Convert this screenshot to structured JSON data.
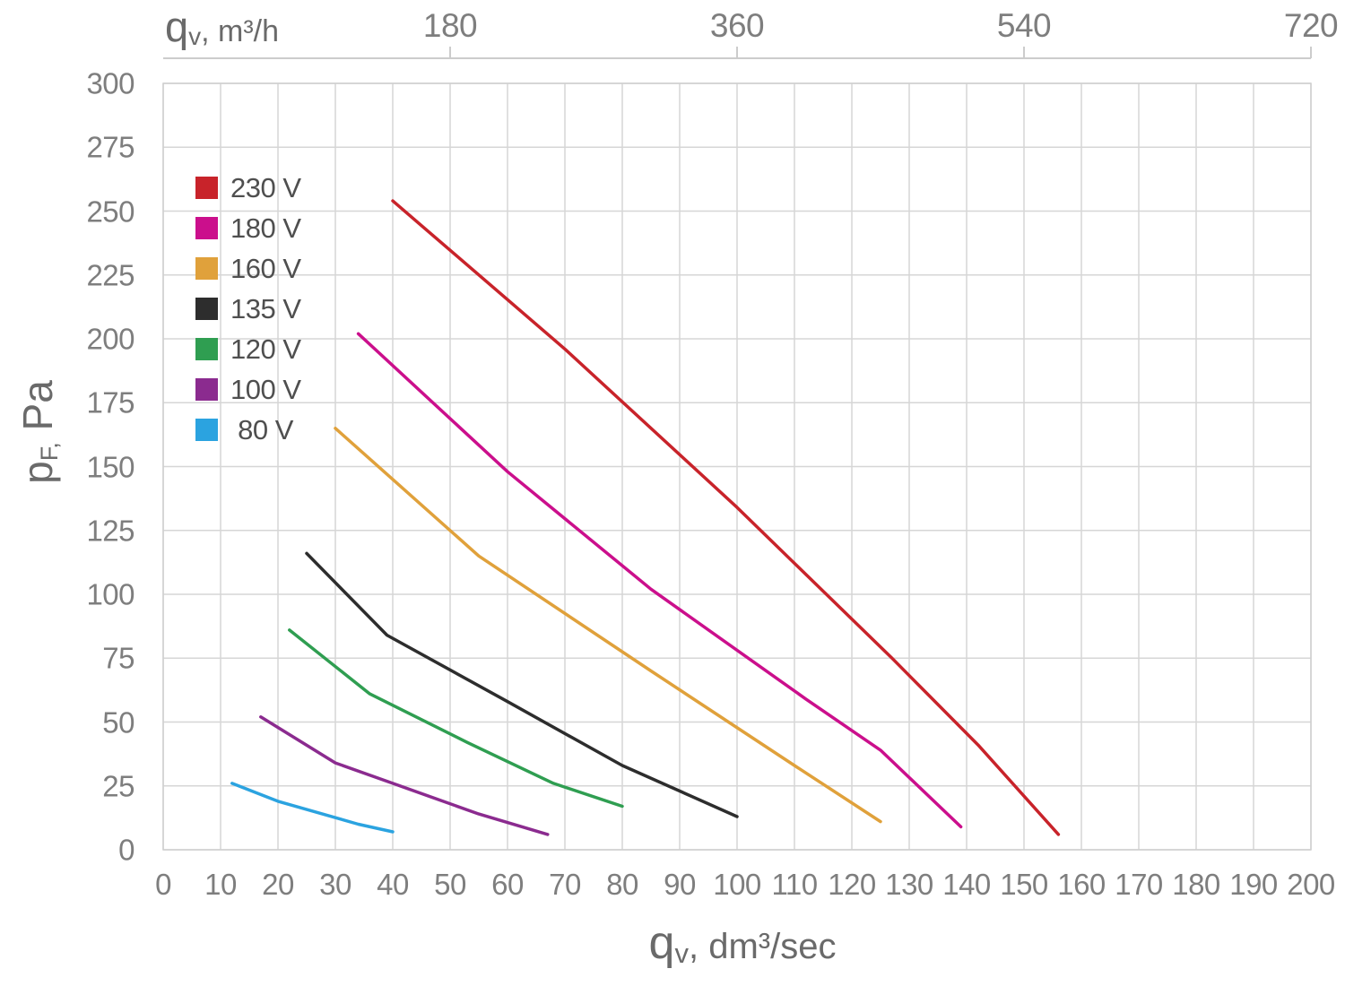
{
  "axes": {
    "top": {
      "title_main": "q",
      "title_sub": "v",
      "title_rest": ", m³/h"
    },
    "bottom": {
      "title_main": "q",
      "title_sub": "v",
      "title_rest": ", dm³/sec"
    },
    "left": {
      "title_main": "p",
      "title_sub": "F,",
      "title_rest": " Pa"
    }
  },
  "chart_data": {
    "type": "line",
    "title": "",
    "xlabel": "qv, dm³/sec",
    "x2label": "qv, m³/h",
    "ylabel": "pF, Pa",
    "xlim": [
      0,
      200
    ],
    "ylim": [
      0,
      300
    ],
    "x2lim": [
      0,
      720
    ],
    "x2_factor": 3.6,
    "grid": true,
    "grid_color": "#d6d6d6",
    "tick_color": "#7e7e7e",
    "legend_position": "upper-left-inside",
    "xticks": [
      0,
      10,
      20,
      30,
      40,
      50,
      60,
      70,
      80,
      90,
      100,
      110,
      120,
      130,
      140,
      150,
      160,
      170,
      180,
      190,
      200
    ],
    "yticks": [
      0,
      25,
      50,
      75,
      100,
      125,
      150,
      175,
      200,
      225,
      250,
      275,
      300
    ],
    "top_ticks": [
      {
        "value": 50,
        "label": "180"
      },
      {
        "value": 100,
        "label": "360"
      },
      {
        "value": 150,
        "label": "540"
      },
      {
        "value": 200,
        "label": "720"
      }
    ],
    "series": [
      {
        "name": "230 V",
        "color": "#c8232a",
        "points": [
          [
            40,
            254
          ],
          [
            70,
            196
          ],
          [
            100,
            134
          ],
          [
            127,
            75
          ],
          [
            142,
            41
          ],
          [
            156,
            6
          ]
        ]
      },
      {
        "name": "180 V",
        "color": "#cb0f8c",
        "points": [
          [
            34,
            202
          ],
          [
            60,
            148
          ],
          [
            85,
            102
          ],
          [
            112,
            59
          ],
          [
            125,
            39
          ],
          [
            139,
            9
          ]
        ]
      },
      {
        "name": "160 V",
        "color": "#e0a13b",
        "points": [
          [
            30,
            165
          ],
          [
            55,
            115
          ],
          [
            85,
            70
          ],
          [
            110,
            33
          ],
          [
            125,
            11
          ]
        ]
      },
      {
        "name": "135 V",
        "color": "#2d2d2d",
        "points": [
          [
            25,
            116
          ],
          [
            39,
            84
          ],
          [
            60,
            58
          ],
          [
            80,
            33
          ],
          [
            100,
            13
          ]
        ]
      },
      {
        "name": "120 V",
        "color": "#2f9e51",
        "points": [
          [
            22,
            86
          ],
          [
            36,
            61
          ],
          [
            53,
            42
          ],
          [
            68,
            26
          ],
          [
            80,
            17
          ]
        ]
      },
      {
        "name": "100 V",
        "color": "#8b2b8f",
        "points": [
          [
            17,
            52
          ],
          [
            30,
            34
          ],
          [
            40,
            26
          ],
          [
            55,
            14
          ],
          [
            67,
            6
          ]
        ]
      },
      {
        "name": " 80 V",
        "color": "#2ba3e0",
        "points": [
          [
            12,
            26
          ],
          [
            20,
            19
          ],
          [
            34,
            10
          ],
          [
            40,
            7
          ]
        ]
      }
    ]
  }
}
